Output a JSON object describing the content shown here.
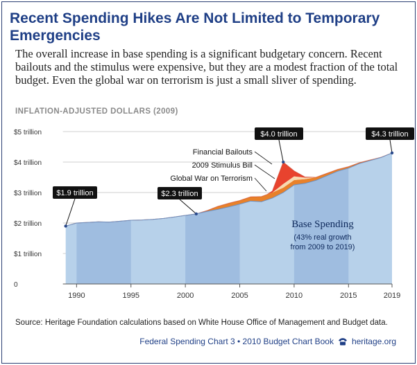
{
  "header": {
    "title": "Recent Spending Hikes Are Not Limited to Temporary Emergencies",
    "subtitle": "The overall increase in base spending is a significant budgetary concern. Recent bailouts and the stimulus were expensive, but they are a modest fraction of the total budget. Even the global war on terrorism is just a small sliver of spending.",
    "units_label": "INFLATION-ADJUSTED DOLLARS (2009)"
  },
  "chart_data": {
    "type": "area",
    "stacked": true,
    "ylim": [
      0,
      5
    ],
    "xlim": [
      1988,
      2019
    ],
    "y_ticks": [
      {
        "value": 0,
        "label": "0"
      },
      {
        "value": 1,
        "label": "$1 trillion"
      },
      {
        "value": 2,
        "label": "$2 trillion"
      },
      {
        "value": 3,
        "label": "$3 trillion"
      },
      {
        "value": 4,
        "label": "$4 trillion"
      },
      {
        "value": 5,
        "label": "$5 trillion"
      }
    ],
    "x_ticks": [
      {
        "value": 1990,
        "label": "1990"
      },
      {
        "value": 1995,
        "label": "1995"
      },
      {
        "value": 2000,
        "label": "2000"
      },
      {
        "value": 2005,
        "label": "2005"
      },
      {
        "value": 2010,
        "label": "2010"
      },
      {
        "value": 2015,
        "label": "2015"
      },
      {
        "value": 2019,
        "label": "2019"
      }
    ],
    "grid": "horizontal",
    "shaded_decade_bands": [
      [
        1990,
        1995
      ],
      [
        2000,
        2005
      ],
      [
        2010,
        2015
      ]
    ],
    "series": [
      {
        "name": "Base Spending",
        "color": "#b7d1ea",
        "points": [
          [
            1989,
            1.9
          ],
          [
            1990,
            2.0
          ],
          [
            1991,
            2.02
          ],
          [
            1992,
            2.04
          ],
          [
            1993,
            2.03
          ],
          [
            1994,
            2.06
          ],
          [
            1995,
            2.09
          ],
          [
            1996,
            2.1
          ],
          [
            1997,
            2.12
          ],
          [
            1998,
            2.15
          ],
          [
            1999,
            2.2
          ],
          [
            2000,
            2.25
          ],
          [
            2001,
            2.3
          ],
          [
            2002,
            2.38
          ],
          [
            2003,
            2.45
          ],
          [
            2004,
            2.53
          ],
          [
            2005,
            2.62
          ],
          [
            2006,
            2.72
          ],
          [
            2007,
            2.7
          ],
          [
            2008,
            2.82
          ],
          [
            2009,
            3.0
          ],
          [
            2010,
            3.25
          ],
          [
            2011,
            3.3
          ],
          [
            2012,
            3.4
          ],
          [
            2013,
            3.55
          ],
          [
            2014,
            3.7
          ],
          [
            2015,
            3.8
          ],
          [
            2016,
            3.95
          ],
          [
            2017,
            4.05
          ],
          [
            2018,
            4.15
          ],
          [
            2019,
            4.3
          ]
        ]
      },
      {
        "name": "Global War on Terrorism",
        "color": "#e8812a",
        "points": [
          [
            2001,
            0
          ],
          [
            2002,
            0.03
          ],
          [
            2003,
            0.1
          ],
          [
            2004,
            0.12
          ],
          [
            2005,
            0.12
          ],
          [
            2006,
            0.14
          ],
          [
            2007,
            0.17
          ],
          [
            2008,
            0.18
          ],
          [
            2009,
            0.16
          ],
          [
            2010,
            0.16
          ],
          [
            2011,
            0.14
          ],
          [
            2012,
            0.1
          ],
          [
            2013,
            0.08
          ],
          [
            2014,
            0.06
          ],
          [
            2015,
            0.05
          ],
          [
            2016,
            0.03
          ],
          [
            2017,
            0.02
          ],
          [
            2018,
            0.01
          ],
          [
            2019,
            0
          ]
        ]
      },
      {
        "name": "2009 Stimulus Bill",
        "color": "#f7d9b0",
        "points": [
          [
            2008,
            0
          ],
          [
            2009,
            0.12
          ],
          [
            2010,
            0.12
          ],
          [
            2011,
            0.05
          ],
          [
            2012,
            0
          ]
        ]
      },
      {
        "name": "Financial Bailouts",
        "color": "#e8432e",
        "points": [
          [
            2007.5,
            0
          ],
          [
            2008,
            0.05
          ],
          [
            2009,
            0.72
          ],
          [
            2010,
            0.18
          ],
          [
            2011,
            0.02
          ],
          [
            2012,
            0
          ]
        ]
      }
    ],
    "series_labels": [
      "Financial Bailouts",
      "2009 Stimulus Bill",
      "Global War on Terrorism"
    ],
    "base_label": {
      "title": "Base Spending",
      "note": "(43% real growth from 2009 to 2019)"
    },
    "callouts": [
      {
        "x": 1989,
        "y": 1.9,
        "label": "$1.9 trillion"
      },
      {
        "x": 2001,
        "y": 2.3,
        "label": "$2.3 trillion"
      },
      {
        "x": 2009,
        "y": 4.0,
        "label": "$4.0 trillion"
      },
      {
        "x": 2019,
        "y": 4.3,
        "label": "$4.3 trillion"
      }
    ]
  },
  "footer": {
    "source_label": "Source:",
    "source_text": "Heritage Foundation calculations based on White House Office of Management and Budget data.",
    "chart_credit": "Federal Spending Chart 3 • 2010 Budget Chart Book",
    "site": "heritage.org"
  },
  "colors": {
    "title": "#1f3f86",
    "base_fill": "#b7d1ea",
    "band_fill": "#9fbde0",
    "gwot": "#e8812a",
    "stimulus": "#f7d9b0",
    "bailouts": "#e8432e",
    "callout_bg": "#111111",
    "marker": "#2b4a8c"
  }
}
